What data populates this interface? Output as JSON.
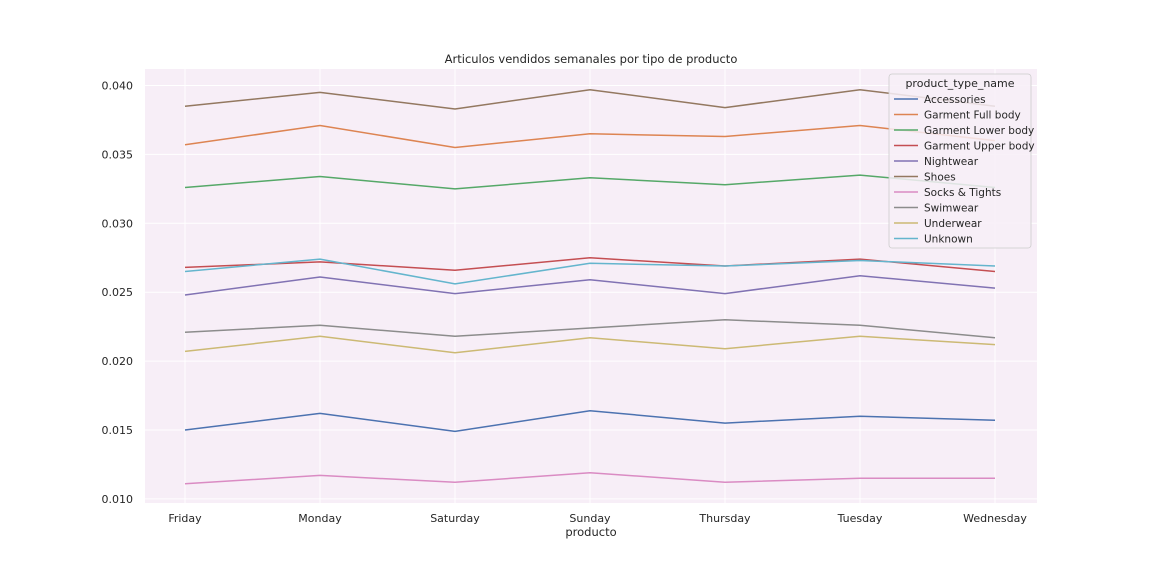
{
  "chart_data": {
    "type": "line",
    "title": "Articulos vendidos semanales por tipo de producto",
    "xlabel": "producto",
    "ylabel": "",
    "categories": [
      "Friday",
      "Monday",
      "Saturday",
      "Sunday",
      "Thursday",
      "Tuesday",
      "Wednesday"
    ],
    "ylim": [
      0.0097,
      0.0412
    ],
    "yticks": [
      0.01,
      0.015,
      0.02,
      0.025,
      0.03,
      0.035,
      0.04
    ],
    "ytick_labels": [
      "0.010",
      "0.015",
      "0.020",
      "0.025",
      "0.030",
      "0.035",
      "0.040"
    ],
    "grid": true,
    "plot_background": "#f7eef7",
    "legend": {
      "title": "product_type_name",
      "placement": "top-right"
    },
    "series": [
      {
        "name": "Accessories",
        "color": "#4c72b0",
        "values": [
          0.015,
          0.0162,
          0.0149,
          0.0164,
          0.0155,
          0.016,
          0.0157
        ]
      },
      {
        "name": "Garment Full body",
        "color": "#dd8452",
        "values": [
          0.0357,
          0.0371,
          0.0355,
          0.0365,
          0.0363,
          0.0371,
          0.036
        ]
      },
      {
        "name": "Garment Lower body",
        "color": "#55a868",
        "values": [
          0.0326,
          0.0334,
          0.0325,
          0.0333,
          0.0328,
          0.0335,
          0.0326
        ]
      },
      {
        "name": "Garment Upper body",
        "color": "#c44e52",
        "values": [
          0.0268,
          0.0272,
          0.0266,
          0.0275,
          0.0269,
          0.0274,
          0.0265
        ]
      },
      {
        "name": "Nightwear",
        "color": "#8172b3",
        "values": [
          0.0248,
          0.0261,
          0.0249,
          0.0259,
          0.0249,
          0.0262,
          0.0253
        ]
      },
      {
        "name": "Shoes",
        "color": "#937860",
        "values": [
          0.0385,
          0.0395,
          0.0383,
          0.0397,
          0.0384,
          0.0397,
          0.0385
        ]
      },
      {
        "name": "Socks & Tights",
        "color": "#da8bc3",
        "values": [
          0.0111,
          0.0117,
          0.0112,
          0.0119,
          0.0112,
          0.0115,
          0.0115
        ]
      },
      {
        "name": "Swimwear",
        "color": "#8c8c8c",
        "values": [
          0.0221,
          0.0226,
          0.0218,
          0.0224,
          0.023,
          0.0226,
          0.0217
        ]
      },
      {
        "name": "Underwear",
        "color": "#ccb974",
        "values": [
          0.0207,
          0.0218,
          0.0206,
          0.0217,
          0.0209,
          0.0218,
          0.0212
        ]
      },
      {
        "name": "Unknown",
        "color": "#64b5cd",
        "values": [
          0.0265,
          0.0274,
          0.0256,
          0.0271,
          0.0269,
          0.0273,
          0.0269
        ]
      }
    ]
  }
}
